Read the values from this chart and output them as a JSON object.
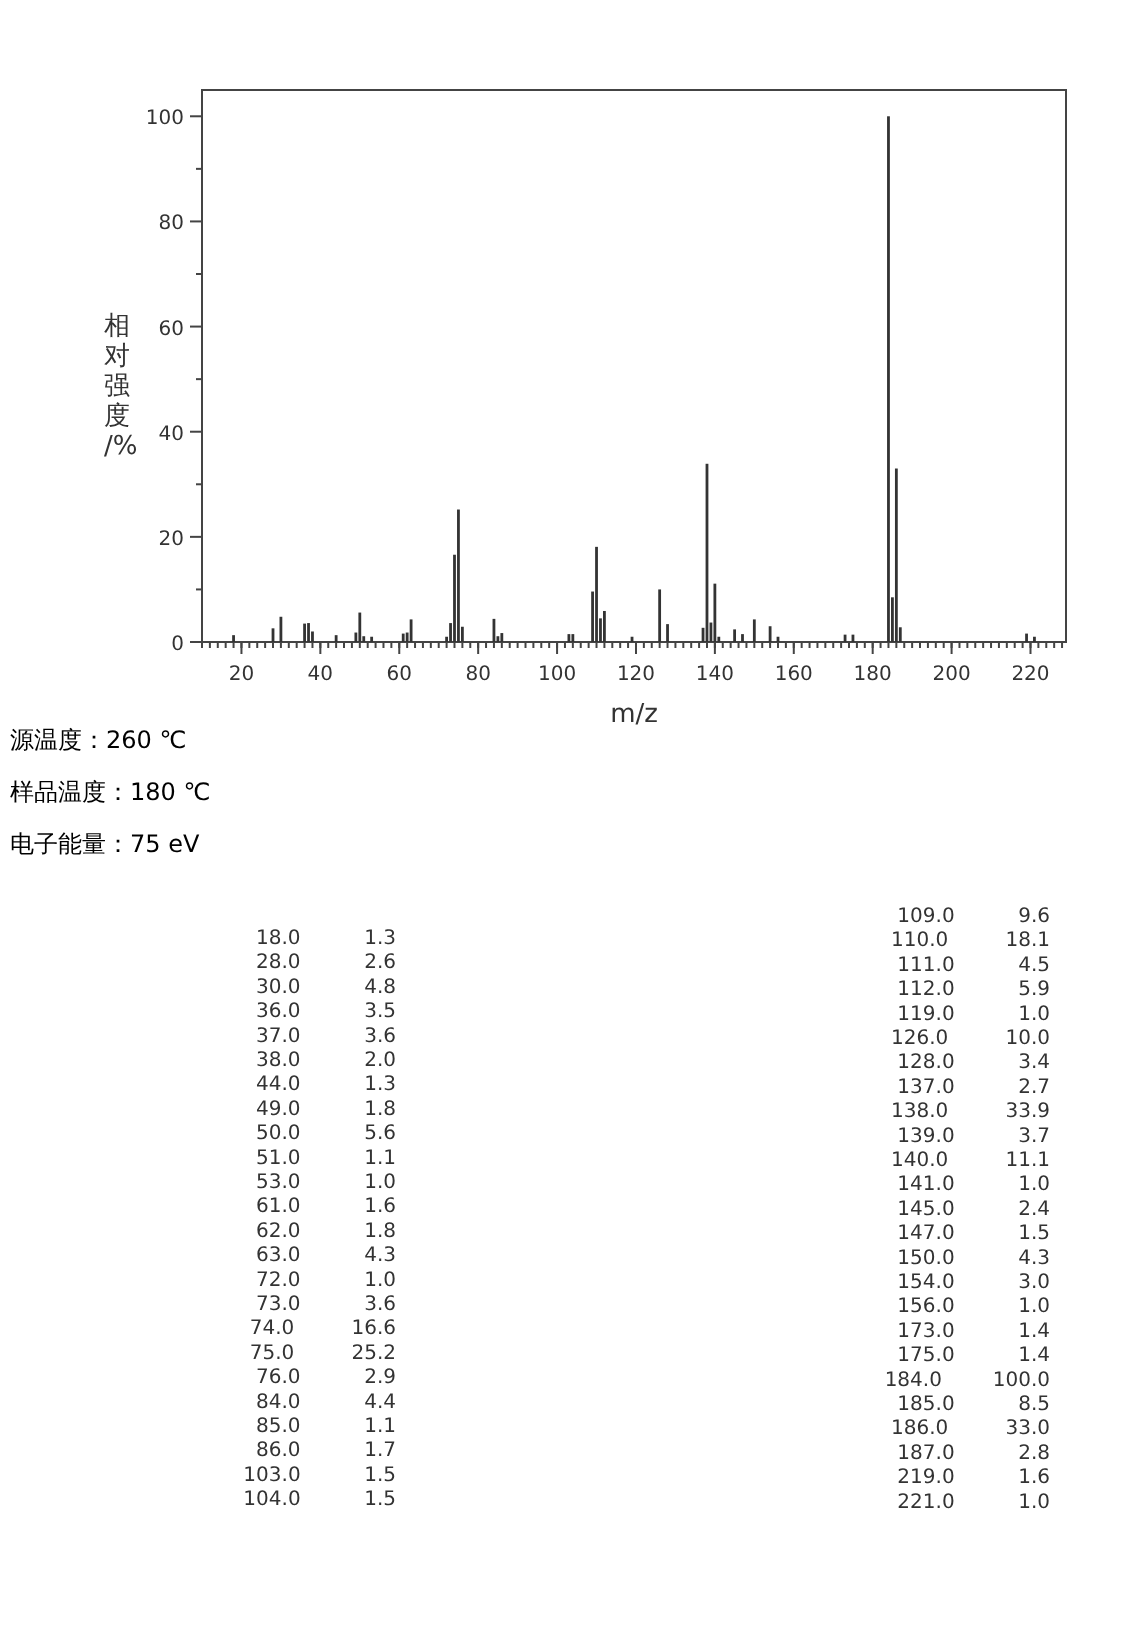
{
  "chart_data": {
    "type": "bar",
    "xlabel": "m/z",
    "ylabel": "相对强度/%",
    "x": [
      18.0,
      28.0,
      30.0,
      36.0,
      37.0,
      38.0,
      44.0,
      49.0,
      50.0,
      51.0,
      53.0,
      61.0,
      62.0,
      63.0,
      72.0,
      73.0,
      74.0,
      75.0,
      76.0,
      84.0,
      85.0,
      86.0,
      103.0,
      104.0,
      109.0,
      110.0,
      111.0,
      112.0,
      119.0,
      126.0,
      128.0,
      137.0,
      138.0,
      139.0,
      140.0,
      141.0,
      145.0,
      147.0,
      150.0,
      154.0,
      156.0,
      173.0,
      175.0,
      184.0,
      185.0,
      186.0,
      187.0,
      219.0,
      221.0
    ],
    "values": [
      1.3,
      2.6,
      4.8,
      3.5,
      3.6,
      2.0,
      1.3,
      1.8,
      5.6,
      1.1,
      1.0,
      1.6,
      1.8,
      4.3,
      1.0,
      3.6,
      16.6,
      25.2,
      2.9,
      4.4,
      1.1,
      1.7,
      1.5,
      1.5,
      9.6,
      18.1,
      4.5,
      5.9,
      1.0,
      10.0,
      3.4,
      2.7,
      33.9,
      3.7,
      11.1,
      1.0,
      2.4,
      1.5,
      4.3,
      3.0,
      1.0,
      1.4,
      1.4,
      100.0,
      8.5,
      33.0,
      2.8,
      1.6,
      1.0
    ],
    "color": "#333333",
    "xlim": [
      10,
      229
    ],
    "xticks": [
      20,
      40,
      60,
      80,
      100,
      120,
      140,
      160,
      180,
      200,
      220
    ],
    "ylim": [
      0,
      105
    ],
    "yticks": [
      0,
      20,
      40,
      60,
      80,
      100
    ],
    "grid": false,
    "legend": false,
    "annotations": [
      "源温度：260 ℃",
      "样品温度：180 ℃",
      "电子能量：75 eV",
      "18.0          1.3",
      "28.0          2.6",
      "30.0          4.8",
      "36.0          3.5",
      "37.0          3.6",
      "38.0          2.0",
      "44.0          1.3",
      "49.0          1.8",
      "50.0          5.6",
      "51.0          1.1",
      "53.0          1.0",
      "61.0          1.6",
      "62.0          1.8",
      "63.0          4.3",
      "72.0          1.0",
      "73.0          3.6",
      "74.0         16.6",
      "75.0         25.2",
      "76.0          2.9",
      "84.0          4.4",
      "85.0          1.1",
      "86.0          1.7",
      "103.0          1.5",
      "104.0          1.5",
      "109.0          9.6",
      "110.0         18.1",
      "111.0          4.5",
      "112.0          5.9",
      "119.0          1.0",
      "126.0         10.0",
      "128.0          3.4",
      "137.0          2.7",
      "138.0         33.9",
      "139.0          3.7",
      "140.0         11.1",
      "141.0          1.0",
      "145.0          2.4",
      "147.0          1.5",
      "150.0          4.3",
      "154.0          3.0",
      "156.0          1.0",
      "173.0          1.4",
      "175.0          1.4",
      "184.0        100.0",
      "185.0          8.5",
      "186.0         33.0",
      "187.0          2.8",
      "219.0          1.6",
      "221.0          1.0"
    ]
  }
}
